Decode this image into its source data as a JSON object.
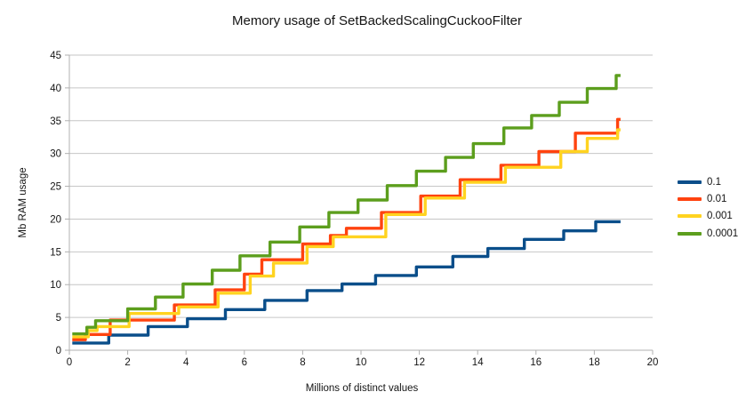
{
  "title": "Memory usage of SetBackedScalingCuckooFilter",
  "chart_data": {
    "type": "line",
    "step": "after",
    "title": "Memory usage of SetBackedScalingCuckooFilter",
    "xlabel": "Millions of distinct values",
    "ylabel": "Mb RAM usage",
    "xlim": [
      0,
      20
    ],
    "ylim": [
      0,
      45
    ],
    "x_ticks": [
      0,
      2,
      4,
      6,
      8,
      10,
      12,
      14,
      16,
      18,
      20
    ],
    "y_ticks": [
      0,
      5,
      10,
      15,
      20,
      25,
      30,
      35,
      40,
      45
    ],
    "grid": "horizontal",
    "grid_color": "#c6c6c6",
    "axis_color": "#b0b0b0",
    "text_color": "#141414",
    "legend_position": "right",
    "x_start": 0.1,
    "x_end": 18.9,
    "series": [
      {
        "name": "0.1",
        "color": "#0a4e8a",
        "points": [
          [
            0.1,
            1.1
          ],
          [
            1.35,
            2.3
          ],
          [
            2.7,
            3.6
          ],
          [
            4.05,
            4.8
          ],
          [
            5.35,
            6.2
          ],
          [
            6.7,
            7.6
          ],
          [
            8.15,
            9.1
          ],
          [
            9.35,
            10.1
          ],
          [
            10.5,
            11.4
          ],
          [
            11.9,
            12.7
          ],
          [
            13.15,
            14.3
          ],
          [
            14.35,
            15.5
          ],
          [
            15.6,
            16.9
          ],
          [
            16.95,
            18.2
          ],
          [
            18.05,
            19.6
          ]
        ]
      },
      {
        "name": "0.01",
        "color": "#ff430f",
        "points": [
          [
            0.1,
            1.6
          ],
          [
            0.55,
            2.4
          ],
          [
            1.4,
            4.6
          ],
          [
            3.6,
            6.9
          ],
          [
            5.0,
            9.2
          ],
          [
            6.0,
            11.6
          ],
          [
            6.6,
            13.8
          ],
          [
            8.0,
            16.2
          ],
          [
            8.95,
            17.5
          ],
          [
            9.5,
            18.6
          ],
          [
            10.7,
            21.0
          ],
          [
            12.05,
            23.5
          ],
          [
            13.4,
            26.0
          ],
          [
            14.8,
            28.2
          ],
          [
            16.1,
            30.3
          ],
          [
            17.35,
            33.1
          ],
          [
            18.8,
            35.2
          ]
        ]
      },
      {
        "name": "0.001",
        "color": "#ffd320",
        "points": [
          [
            0.1,
            2.05
          ],
          [
            0.65,
            3.0
          ],
          [
            0.95,
            3.6
          ],
          [
            2.05,
            5.6
          ],
          [
            3.75,
            6.6
          ],
          [
            5.1,
            8.7
          ],
          [
            6.2,
            11.3
          ],
          [
            7.0,
            13.3
          ],
          [
            8.15,
            15.8
          ],
          [
            9.05,
            17.3
          ],
          [
            10.85,
            20.7
          ],
          [
            12.2,
            23.2
          ],
          [
            13.55,
            25.6
          ],
          [
            14.95,
            27.9
          ],
          [
            16.85,
            30.3
          ],
          [
            17.76,
            32.3
          ],
          [
            18.8,
            33.6
          ]
        ]
      },
      {
        "name": "0.0001",
        "color": "#5c9e1d",
        "points": [
          [
            0.1,
            2.5
          ],
          [
            0.6,
            3.5
          ],
          [
            0.9,
            4.5
          ],
          [
            2.0,
            6.3
          ],
          [
            2.95,
            8.1
          ],
          [
            3.9,
            10.1
          ],
          [
            4.9,
            12.2
          ],
          [
            5.85,
            14.4
          ],
          [
            6.88,
            16.5
          ],
          [
            7.9,
            18.8
          ],
          [
            8.9,
            21.0
          ],
          [
            9.9,
            22.9
          ],
          [
            10.9,
            25.1
          ],
          [
            11.9,
            27.3
          ],
          [
            12.9,
            29.4
          ],
          [
            13.85,
            31.5
          ],
          [
            14.9,
            33.9
          ],
          [
            15.85,
            35.8
          ],
          [
            16.8,
            37.8
          ],
          [
            17.76,
            39.9
          ],
          [
            18.75,
            41.9
          ]
        ]
      }
    ]
  }
}
